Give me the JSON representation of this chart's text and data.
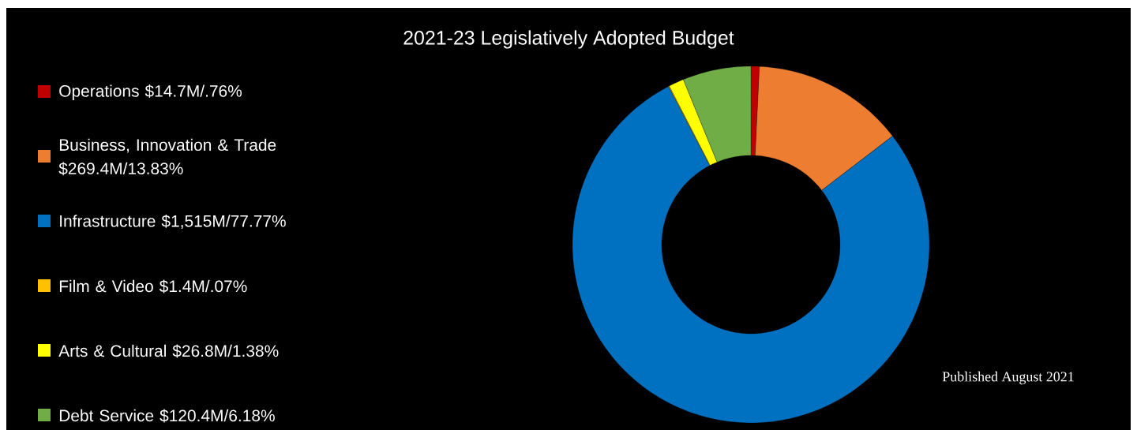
{
  "chart_data": {
    "type": "donut",
    "title": "2021-23 Legislatively Adopted Budget",
    "categories": [
      "Operations $14.7M/.76%",
      "Business, Innovation & Trade $269.4M/13.83%",
      "Infrastructure $1,515M/77.77%",
      "Film & Video $1.4M/.07%",
      "Arts & Cultural $26.8M/1.38%",
      "Debt Service $120.4M/6.18%"
    ],
    "values": [
      0.76,
      13.83,
      77.77,
      0.07,
      1.38,
      6.18
    ],
    "colors": [
      "#c00000",
      "#ed7d31",
      "#0070c0",
      "#ffc000",
      "#ffff00",
      "#70ad47"
    ],
    "legend": "left",
    "annotations": [
      "Published August 2021"
    ]
  }
}
